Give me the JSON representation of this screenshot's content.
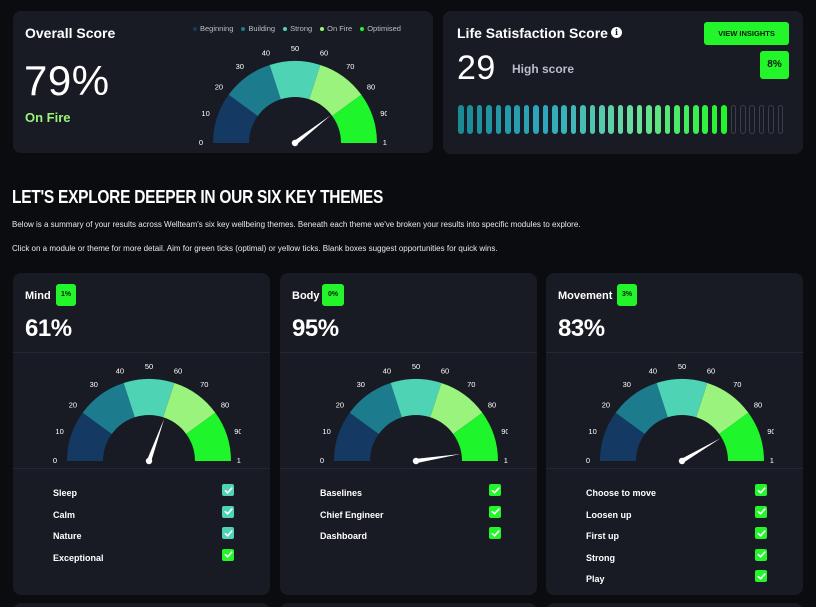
{
  "colors": {
    "beginning": "#143a63",
    "building": "#1c7c8e",
    "strong": "#4fd3b5",
    "on_fire": "#9af37c",
    "optimised": "#1ef52a",
    "check_teal": "#4fd3b5",
    "check_green": "#22f52a"
  },
  "overall": {
    "title": "Overall Score",
    "score": "79%",
    "level": "On Fire",
    "legend": [
      {
        "label": "Beginning",
        "color": "#143a63"
      },
      {
        "label": "Building",
        "color": "#1c7c8e"
      },
      {
        "label": "Strong",
        "color": "#4fd3b5"
      },
      {
        "label": "On Fire",
        "color": "#9af37c"
      },
      {
        "label": "Optimised",
        "color": "#1ef52a"
      }
    ],
    "gauge_ticks": [
      "0",
      "10",
      "20",
      "30",
      "40",
      "50",
      "60",
      "70",
      "80",
      "90",
      "100"
    ],
    "gauge_value": 79
  },
  "life": {
    "title": "Life Satisfaction Score",
    "info_icon": "info-icon",
    "score": "29",
    "label": "High score",
    "button": "VIEW INSIGHTS",
    "badge": "8%",
    "bar_value": 29,
    "bar_max": 35
  },
  "explore": {
    "heading": "LET'S EXPLORE DEEPER IN OUR SIX KEY THEMES",
    "para1": "Below is a summary of your results across Wellteam's six key wellbeing themes. Beneath each theme we've broken your results into specific modules to explore.",
    "para2": "Click on a module or theme for more detail. Aim for green ticks (optimal) or yellow ticks. Blank boxes suggest opportunities for quick wins."
  },
  "themes": [
    {
      "title": "Mind",
      "badge": "1%",
      "score": "61%",
      "gauge_value": 61,
      "modules": [
        {
          "name": "Sleep",
          "state": "teal"
        },
        {
          "name": "Calm",
          "state": "teal"
        },
        {
          "name": "Nature",
          "state": "teal"
        },
        {
          "name": "Exceptional",
          "state": "green"
        }
      ]
    },
    {
      "title": "Body",
      "badge": "0%",
      "score": "95%",
      "gauge_value": 95,
      "modules": [
        {
          "name": "Baselines",
          "state": "green"
        },
        {
          "name": "Chief Engineer",
          "state": "green"
        },
        {
          "name": "Dashboard",
          "state": "green"
        }
      ]
    },
    {
      "title": "Movement",
      "badge": "3%",
      "score": "83%",
      "gauge_value": 83,
      "modules": [
        {
          "name": "Choose to move",
          "state": "green"
        },
        {
          "name": "Loosen up",
          "state": "green"
        },
        {
          "name": "First up",
          "state": "green"
        },
        {
          "name": "Strong",
          "state": "green"
        },
        {
          "name": "Play",
          "state": "green"
        }
      ]
    }
  ]
}
